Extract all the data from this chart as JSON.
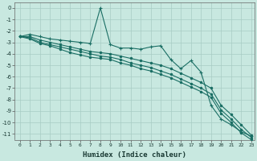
{
  "xlabel": "Humidex (Indice chaleur)",
  "bg_color": "#c8e8e0",
  "grid_color": "#a8ccc4",
  "line_color": "#1a6e64",
  "xlim": [
    -0.5,
    23.3
  ],
  "ylim": [
    -11.5,
    0.5
  ],
  "yticks": [
    0,
    -1,
    -2,
    -3,
    -4,
    -5,
    -6,
    -7,
    -8,
    -9,
    -10,
    -11
  ],
  "xticks": [
    0,
    1,
    2,
    3,
    4,
    5,
    6,
    7,
    8,
    9,
    10,
    11,
    12,
    13,
    14,
    15,
    16,
    17,
    18,
    19,
    20,
    21,
    22,
    23
  ],
  "x": [
    0,
    1,
    2,
    3,
    4,
    5,
    6,
    7,
    8,
    9,
    10,
    11,
    12,
    13,
    14,
    15,
    16,
    17,
    18,
    19,
    20,
    21,
    22,
    23
  ],
  "line1_y": [
    -2.5,
    -2.3,
    -2.5,
    -2.7,
    -2.8,
    -2.9,
    -3.0,
    -3.1,
    0.0,
    -3.2,
    -3.5,
    -3.5,
    -3.6,
    -3.4,
    -3.3,
    -4.5,
    -5.3,
    -4.6,
    -5.6,
    -8.5,
    -9.7,
    -10.2,
    -10.8,
    -11.2
  ],
  "line2_y": [
    -2.5,
    -2.5,
    -2.8,
    -3.0,
    -3.2,
    -3.4,
    -3.6,
    -3.8,
    -3.9,
    -4.0,
    -4.2,
    -4.4,
    -4.6,
    -4.8,
    -5.0,
    -5.3,
    -5.7,
    -6.1,
    -6.5,
    -7.0,
    -8.5,
    -9.3,
    -10.2,
    -11.1
  ],
  "line3_y": [
    -2.5,
    -2.6,
    -3.0,
    -3.2,
    -3.4,
    -3.6,
    -3.8,
    -4.0,
    -4.2,
    -4.3,
    -4.5,
    -4.8,
    -5.0,
    -5.2,
    -5.5,
    -5.8,
    -6.2,
    -6.6,
    -7.0,
    -7.5,
    -8.9,
    -9.7,
    -10.6,
    -11.3
  ],
  "line4_y": [
    -2.5,
    -2.7,
    -3.1,
    -3.3,
    -3.6,
    -3.9,
    -4.1,
    -4.3,
    -4.4,
    -4.5,
    -4.8,
    -5.0,
    -5.3,
    -5.5,
    -5.8,
    -6.1,
    -6.5,
    -6.9,
    -7.3,
    -7.8,
    -9.2,
    -10.0,
    -10.9,
    -11.5
  ]
}
